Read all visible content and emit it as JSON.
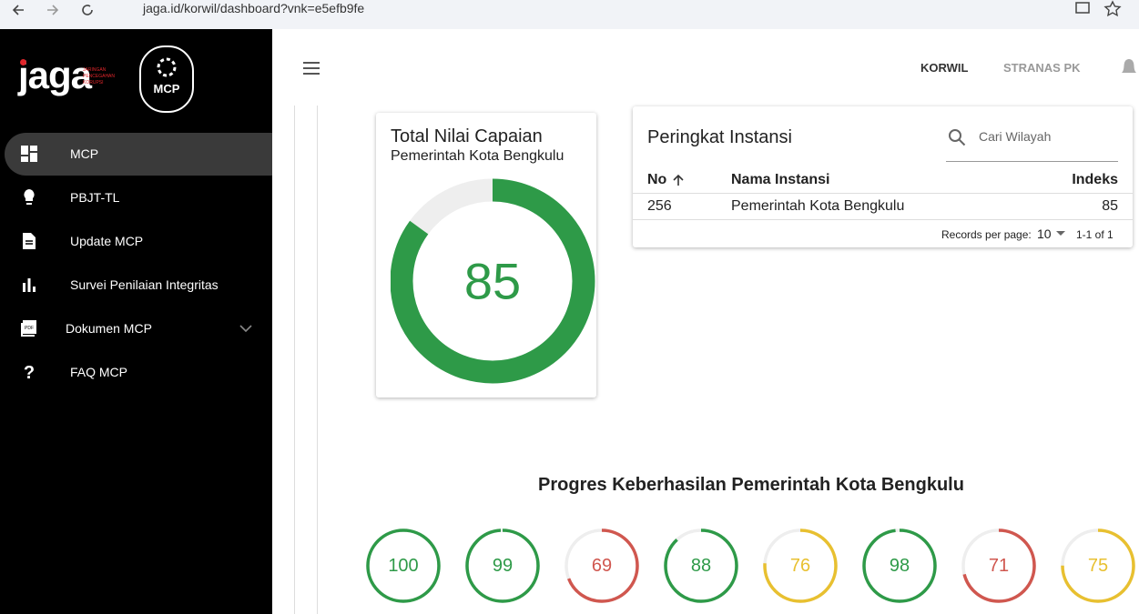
{
  "browser": {
    "url": "jaga.id/korwil/dashboard?vnk=e5efb9fe"
  },
  "sidebar": {
    "logo": {
      "brand": "jaga",
      "tagline": [
        "JARINGAN",
        "PENCEGAHAN",
        "KORUPSI"
      ],
      "badge": "MCP"
    },
    "menu": [
      "MCP",
      "PBJT-TL",
      "Update MCP",
      "Survei Penilaian Integritas",
      "Dokumen MCP",
      "FAQ MCP"
    ]
  },
  "header": {
    "nav": [
      "KORWIL",
      "STRANAS PK"
    ]
  },
  "score_card": {
    "title": "Total Nilai Capaian",
    "subtitle": "Pemerintah Kota Bengkulu",
    "value": 85,
    "color": "#2e9a48"
  },
  "ranking": {
    "title": "Peringkat Instansi",
    "search_placeholder": "Cari Wilayah",
    "columns": [
      "No",
      "Nama Instansi",
      "Indeks"
    ],
    "rows": [
      [
        256,
        "Pemerintah Kota Bengkulu",
        85
      ]
    ],
    "footer": {
      "rows_per_page_label": "Records per page:",
      "rows_per_page": 10,
      "range": "1-1 of 1"
    }
  },
  "progress": {
    "title": "Progres Keberhasilan Pemerintah Kota Bengkulu",
    "items": [
      {
        "value": 100,
        "color": "#2e9a48"
      },
      {
        "value": 99,
        "color": "#2e9a48"
      },
      {
        "value": 69,
        "color": "#d0574f"
      },
      {
        "value": 88,
        "color": "#2e9a48"
      },
      {
        "value": 76,
        "color": "#e8c030"
      },
      {
        "value": 98,
        "color": "#2e9a48"
      },
      {
        "value": 71,
        "color": "#d0574f"
      },
      {
        "value": 75,
        "color": "#e8c030"
      }
    ]
  }
}
